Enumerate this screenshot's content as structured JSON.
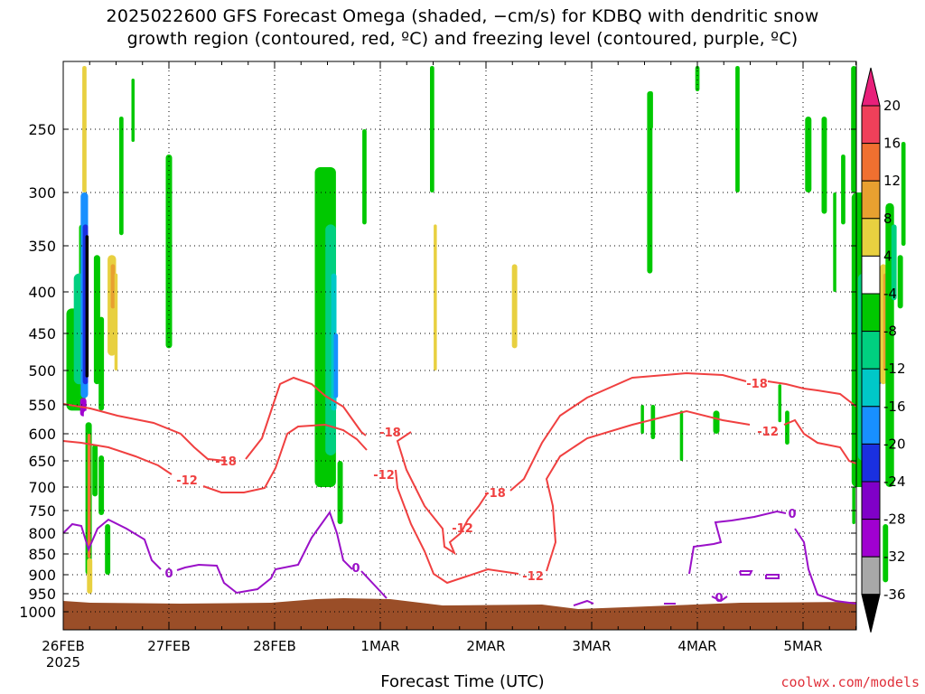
{
  "title_line1": "2025022600 GFS Forecast Omega (shaded, −cm/s) for KDBQ with dendritic snow",
  "title_line2": "growth region (contoured, red, ºC) and freezing level (contoured, purple, ºC)",
  "credit": "coolwx.com/models",
  "chart_data": {
    "type": "heatmap",
    "title": "2025022600 GFS Forecast Omega (shaded, −cm/s) for KDBQ with dendritic snow growth region (contoured, red, ºC) and freezing level (contoured, purple, ºC)",
    "xlabel": "Forecast Time (UTC)",
    "ylabel": "",
    "x_ticks": [
      "26FEB",
      "27FEB",
      "28FEB",
      "1MAR",
      "2MAR",
      "3MAR",
      "4MAR",
      "5MAR"
    ],
    "x_tick_sub": "2025",
    "x_range": [
      "2025-02-26 00Z",
      "2025-03-05 12Z"
    ],
    "y_ticks": [
      250,
      300,
      350,
      400,
      450,
      500,
      550,
      600,
      650,
      700,
      750,
      800,
      850,
      900,
      950,
      1000
    ],
    "y_units": "hPa",
    "y_range": [
      200,
      1000
    ],
    "colorbar": {
      "levels": [
        20,
        16,
        12,
        8,
        4,
        -4,
        -8,
        -12,
        -16,
        -20,
        -24,
        -28,
        -32,
        -36
      ],
      "colors": [
        "#f0405a",
        "#f07030",
        "#e8a030",
        "#e8d040",
        "#ffffff",
        "#00c800",
        "#00d080",
        "#00c8c8",
        "#1890ff",
        "#1a30e0",
        "#8000c8",
        "#a000d0",
        "#a8a8a8",
        "#000000"
      ],
      "top_arrow_color": "#e8207a",
      "bottom_arrow_color": "#000000"
    },
    "contours": {
      "dgz_red": {
        "color": "#f04040",
        "levels": [
          -18,
          -12
        ]
      },
      "freezing_purple": {
        "color": "#9a10c8",
        "levels": [
          0
        ]
      }
    },
    "contour_labels_shown": [
      "-18",
      "-18",
      "-18",
      "-18",
      "-12",
      "-12",
      "-12",
      "-12",
      "-12",
      "0",
      "0",
      "0",
      "0"
    ],
    "ground_color": "#9a4e28",
    "grid": true
  }
}
